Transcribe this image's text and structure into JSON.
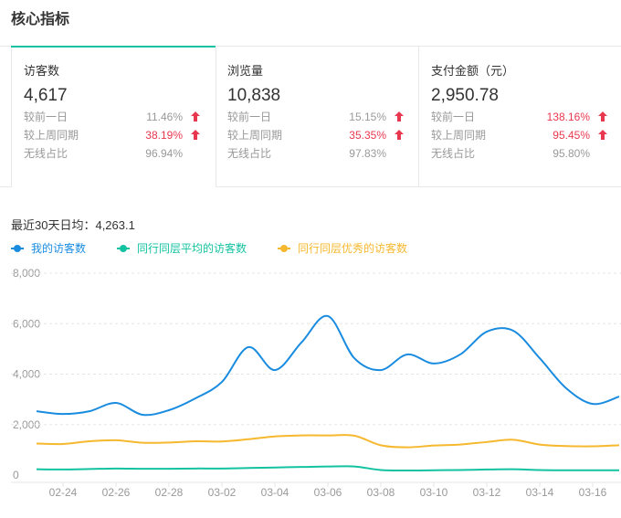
{
  "header": {
    "title": "核心指标"
  },
  "cards": [
    {
      "label": "访客数",
      "value": "4,617",
      "rows": [
        {
          "label": "较前一日",
          "value": "11.46%",
          "highlight": false,
          "up": true
        },
        {
          "label": "较上周同期",
          "value": "38.19%",
          "highlight": true,
          "up": true
        },
        {
          "label": "无线占比",
          "value": "96.94%",
          "highlight": false,
          "up": false
        }
      ]
    },
    {
      "label": "浏览量",
      "value": "10,838",
      "rows": [
        {
          "label": "较前一日",
          "value": "15.15%",
          "highlight": false,
          "up": true
        },
        {
          "label": "较上周同期",
          "value": "35.35%",
          "highlight": true,
          "up": true
        },
        {
          "label": "无线占比",
          "value": "97.83%",
          "highlight": false,
          "up": false
        }
      ]
    },
    {
      "label": "支付金额（元）",
      "value": "2,950.78",
      "rows": [
        {
          "label": "较前一日",
          "value": "138.16%",
          "highlight": true,
          "up": true
        },
        {
          "label": "较上周同期",
          "value": "95.45%",
          "highlight": true,
          "up": true
        },
        {
          "label": "无线占比",
          "value": "95.80%",
          "highlight": false,
          "up": false
        }
      ]
    }
  ],
  "summary": "最近30天日均：4,263.1",
  "chart_data": {
    "type": "line",
    "categories": [
      null,
      "02-24",
      null,
      "02-26",
      null,
      "02-28",
      null,
      "03-02",
      null,
      "03-04",
      null,
      "03-06",
      null,
      "03-08",
      null,
      "03-10",
      null,
      "03-12",
      null,
      "03-14",
      null,
      "03-16",
      null
    ],
    "series": [
      {
        "name": "我的访客数",
        "color": "#1a8ce0",
        "values": [
          2530,
          2420,
          2530,
          2860,
          2390,
          2570,
          3040,
          3690,
          5070,
          4160,
          5250,
          6300,
          4630,
          4160,
          4780,
          4420,
          4780,
          5680,
          5720,
          4630,
          3440,
          2820,
          3110
        ]
      },
      {
        "name": "同行同层平均的访客数",
        "color": "#13c2a0",
        "values": [
          230,
          220,
          240,
          260,
          250,
          250,
          260,
          260,
          280,
          300,
          320,
          340,
          340,
          200,
          180,
          190,
          200,
          220,
          230,
          200,
          190,
          190,
          190
        ]
      },
      {
        "name": "同行同层优秀的访客数",
        "color": "#f5b82e",
        "values": [
          1250,
          1230,
          1340,
          1380,
          1280,
          1290,
          1340,
          1330,
          1420,
          1530,
          1570,
          1570,
          1560,
          1180,
          1100,
          1170,
          1210,
          1310,
          1400,
          1210,
          1150,
          1140,
          1180
        ]
      }
    ],
    "ylim": [
      0,
      8000
    ],
    "yticks": [
      0,
      {
        "value": 2000,
        "label": "2,000"
      },
      {
        "value": 4000,
        "label": "4,000"
      },
      {
        "value": 6000,
        "label": "6,000"
      },
      {
        "value": 8000,
        "label": "8,000"
      }
    ],
    "grid": true
  }
}
